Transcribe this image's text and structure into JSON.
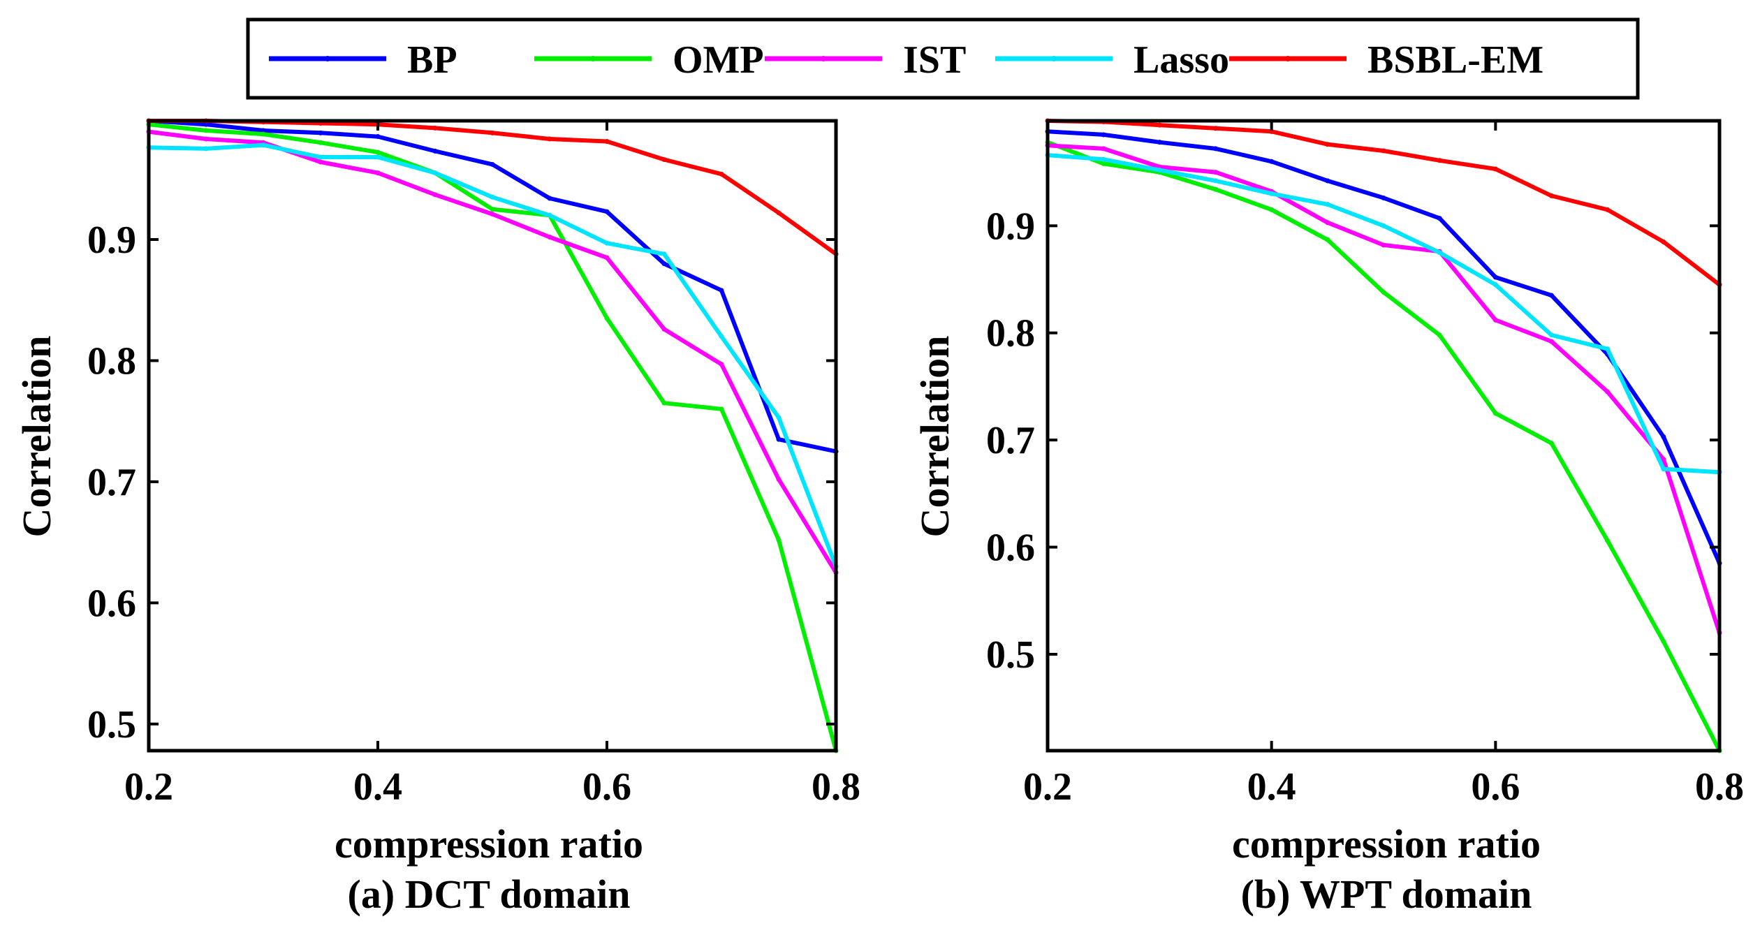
{
  "chart_data": [
    {
      "type": "line",
      "title": "",
      "caption": "(a) DCT domain",
      "xlabel": "compression ratio",
      "ylabel": "Correlation",
      "xlim": [
        0.2,
        0.8
      ],
      "ylim": [
        0.478,
        0.998
      ],
      "xticks": [
        0.2,
        0.4,
        0.6,
        0.8
      ],
      "xtick_labels": [
        "0.2",
        "0.4",
        "0.6",
        "0.8"
      ],
      "yticks": [
        0.5,
        0.6,
        0.7,
        0.8,
        0.9
      ],
      "ytick_labels": [
        "0.5",
        "0.6",
        "0.7",
        "0.8",
        "0.9"
      ],
      "grid": false,
      "x": [
        0.2,
        0.25,
        0.3,
        0.35,
        0.4,
        0.45,
        0.5,
        0.55,
        0.6,
        0.65,
        0.7,
        0.75,
        0.8
      ],
      "series": [
        {
          "name": "BP",
          "color": "#0000ff",
          "values": [
            0.998,
            0.995,
            0.99,
            0.988,
            0.985,
            0.973,
            0.962,
            0.934,
            0.923,
            0.88,
            0.858,
            0.735,
            0.725
          ]
        },
        {
          "name": "OMP",
          "color": "#00ee00",
          "values": [
            0.995,
            0.99,
            0.987,
            0.98,
            0.972,
            0.955,
            0.925,
            0.92,
            0.835,
            0.765,
            0.76,
            0.652,
            0.478
          ]
        },
        {
          "name": "IST",
          "color": "#ff00ff",
          "values": [
            0.989,
            0.983,
            0.98,
            0.964,
            0.955,
            0.937,
            0.921,
            0.902,
            0.885,
            0.826,
            0.797,
            0.702,
            0.625
          ]
        },
        {
          "name": "Lasso",
          "color": "#00e5ff",
          "values": [
            0.976,
            0.975,
            0.978,
            0.968,
            0.968,
            0.955,
            0.935,
            0.92,
            0.897,
            0.888,
            0.82,
            0.753,
            0.63
          ]
        },
        {
          "name": "BSBL-EM",
          "color": "#ff0000",
          "values": [
            0.998,
            0.998,
            0.997,
            0.996,
            0.995,
            0.992,
            0.988,
            0.983,
            0.981,
            0.966,
            0.954,
            0.922,
            0.888
          ]
        }
      ]
    },
    {
      "type": "line",
      "title": "",
      "caption": "(b) WPT domain",
      "xlabel": "compression ratio",
      "ylabel": "Correlation",
      "xlim": [
        0.2,
        0.8
      ],
      "ylim": [
        0.41,
        0.998
      ],
      "xticks": [
        0.2,
        0.4,
        0.6,
        0.8
      ],
      "xtick_labels": [
        "0.2",
        "0.4",
        "0.6",
        "0.8"
      ],
      "yticks": [
        0.5,
        0.6,
        0.7,
        0.8,
        0.9
      ],
      "ytick_labels": [
        "0.5",
        "0.6",
        "0.7",
        "0.8",
        "0.9"
      ],
      "grid": false,
      "x": [
        0.2,
        0.25,
        0.3,
        0.35,
        0.4,
        0.45,
        0.5,
        0.55,
        0.6,
        0.65,
        0.7,
        0.75,
        0.8
      ],
      "series": [
        {
          "name": "BP",
          "color": "#0000ff",
          "values": [
            0.988,
            0.985,
            0.978,
            0.972,
            0.96,
            0.942,
            0.926,
            0.907,
            0.852,
            0.835,
            0.78,
            0.703,
            0.585
          ]
        },
        {
          "name": "OMP",
          "color": "#00ee00",
          "values": [
            0.978,
            0.958,
            0.95,
            0.934,
            0.915,
            0.887,
            0.838,
            0.798,
            0.725,
            0.697,
            0.606,
            0.512,
            0.41
          ]
        },
        {
          "name": "IST",
          "color": "#ff00ff",
          "values": [
            0.975,
            0.972,
            0.955,
            0.95,
            0.932,
            0.903,
            0.882,
            0.876,
            0.812,
            0.792,
            0.745,
            0.682,
            0.52
          ]
        },
        {
          "name": "Lasso",
          "color": "#00e5ff",
          "values": [
            0.966,
            0.962,
            0.952,
            0.942,
            0.93,
            0.92,
            0.9,
            0.875,
            0.845,
            0.798,
            0.785,
            0.673,
            0.67
          ]
        },
        {
          "name": "BSBL-EM",
          "color": "#ff0000",
          "values": [
            0.998,
            0.997,
            0.994,
            0.991,
            0.988,
            0.976,
            0.97,
            0.961,
            0.953,
            0.928,
            0.915,
            0.885,
            0.845
          ]
        }
      ]
    }
  ],
  "legend": {
    "placement": "top-center",
    "entries": [
      {
        "name": "BP",
        "color": "#0000ff"
      },
      {
        "name": "OMP",
        "color": "#00ee00"
      },
      {
        "name": "IST",
        "color": "#ff00ff"
      },
      {
        "name": "Lasso",
        "color": "#00e5ff"
      },
      {
        "name": "BSBL-EM",
        "color": "#ff0000"
      }
    ]
  }
}
